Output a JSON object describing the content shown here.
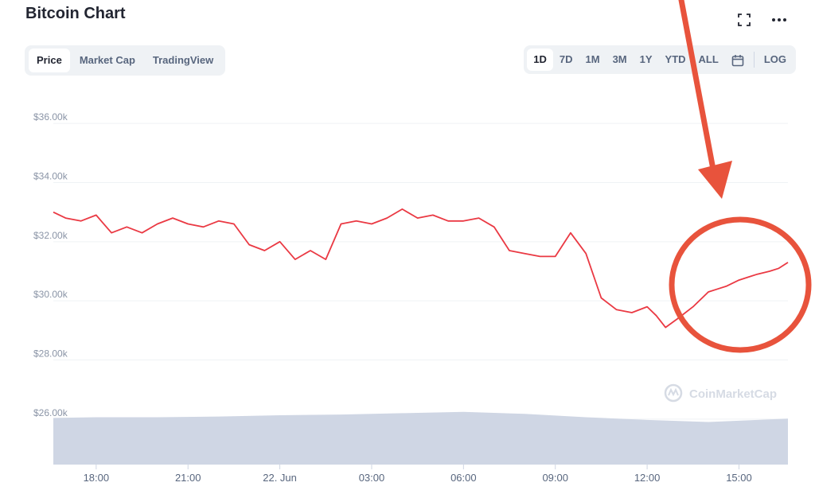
{
  "page": {
    "title": "Bitcoin Chart"
  },
  "view_tabs": [
    "Price",
    "Market Cap",
    "TradingView"
  ],
  "active_tab": "Price",
  "ranges": [
    "1D",
    "7D",
    "1M",
    "3M",
    "1Y",
    "YTD",
    "ALL"
  ],
  "active_range": "1D",
  "log_label": "LOG",
  "watermark": "CoinMarketCap",
  "icons": {
    "fullscreen": "fullscreen-icon",
    "more": "more-dots-icon",
    "calendar": "calendar-icon"
  },
  "colors": {
    "price_line": "#ea3943",
    "volume_fill": "#cfd6e4",
    "annotation": "#e8533c",
    "grid": "#eff2f5",
    "axis_text": "#8a94a6"
  },
  "chart_data": {
    "type": "line",
    "y_ticks": [
      "$26.00k",
      "$28.00k",
      "$30.00k",
      "$32.00k",
      "$34.00k",
      "$36.00k"
    ],
    "ylim": [
      25000,
      37000
    ],
    "x_ticks": [
      "18:00",
      "21:00",
      "22. Jun",
      "03:00",
      "06:00",
      "09:00",
      "12:00",
      "15:00"
    ],
    "x_tick_hours": [
      18,
      21,
      24,
      27,
      30,
      33,
      36,
      39
    ],
    "xlim_hours": [
      16.6,
      40.6
    ],
    "grid": true,
    "series": [
      {
        "x_hours": [
          16.6,
          17.0,
          17.5,
          18.0,
          18.5,
          19.0,
          19.5,
          20.0,
          20.5,
          21.0,
          21.5,
          22.0,
          22.5,
          23.0,
          23.5,
          24.0,
          24.5,
          25.0,
          25.5,
          26.0,
          26.5,
          27.0,
          27.5,
          28.0,
          28.5,
          29.0,
          29.5,
          30.0,
          30.5,
          31.0,
          31.5,
          32.0,
          32.5,
          33.0,
          33.5,
          34.0,
          34.5,
          35.0,
          35.5,
          36.0,
          36.3,
          36.6,
          37.0,
          37.5,
          38.0,
          38.3,
          38.6,
          39.0,
          39.3,
          39.6,
          40.0,
          40.3,
          40.6
        ],
        "values": [
          33000,
          32800,
          32700,
          32900,
          32300,
          32500,
          32300,
          32600,
          32800,
          32600,
          32500,
          32700,
          32600,
          31900,
          31700,
          32000,
          31400,
          31700,
          31400,
          32600,
          32700,
          32600,
          32800,
          33100,
          32800,
          32900,
          32700,
          32700,
          32800,
          32500,
          31700,
          31600,
          31500,
          31500,
          32300,
          31600,
          30100,
          29700,
          29600,
          29800,
          29500,
          29100,
          29400,
          29800,
          30300,
          30400,
          30500,
          30700,
          30800,
          30900,
          31000,
          31100,
          31300
        ]
      }
    ],
    "volume": {
      "x_hours": [
        16.6,
        18.0,
        20.0,
        22.0,
        24.0,
        26.0,
        28.0,
        30.0,
        32.0,
        34.0,
        36.0,
        38.0,
        40.6
      ],
      "values": [
        0.69,
        0.7,
        0.7,
        0.71,
        0.73,
        0.74,
        0.76,
        0.78,
        0.75,
        0.7,
        0.66,
        0.63,
        0.68
      ]
    }
  }
}
